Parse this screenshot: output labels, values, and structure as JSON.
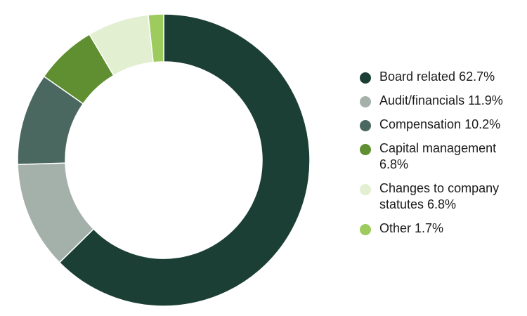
{
  "chart_data": {
    "type": "pie",
    "donut": true,
    "legend_position": "right",
    "categories": [
      "Board related",
      "Audit/financials",
      "Compensation",
      "Capital management",
      "Changes to company statutes",
      "Other"
    ],
    "values": [
      62.7,
      11.9,
      10.2,
      6.8,
      6.8,
      1.7
    ],
    "colors": [
      "#1b3f35",
      "#a3b1aa",
      "#4a6860",
      "#608f32",
      "#e3efd1",
      "#9dcb5e"
    ],
    "legend": [
      "Board related 62.7%",
      "Audit/financials 11.9%",
      "Compensation 10.2%",
      "Capital management 6.8%",
      "Changes to company statutes 6.8%",
      "Other 1.7%"
    ]
  }
}
